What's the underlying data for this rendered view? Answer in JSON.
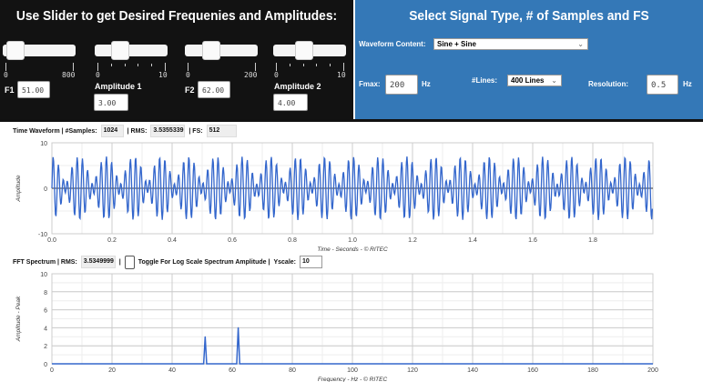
{
  "left_panel": {
    "title": "Use Slider to get Desired Frequenies and Amplitudes:",
    "sliders": [
      {
        "name": "F1",
        "label": "F1",
        "min": "0",
        "max": "800",
        "value": "51.00"
      },
      {
        "name": "Amplitude 1",
        "label": "Amplitude 1",
        "min": "0",
        "max": "10",
        "value": "3.00"
      },
      {
        "name": "F2",
        "label": "F2",
        "min": "0",
        "max": "200",
        "value": "62.00"
      },
      {
        "name": "Amplitude 2",
        "label": "Amplitude 2",
        "min": "0",
        "max": "10",
        "value": "4.00"
      }
    ]
  },
  "right_panel": {
    "title": "Select Signal Type, # of Samples and FS",
    "waveform_label": "Waveform Content:",
    "waveform_value": "Sine + Sine",
    "fmax_label": "Fmax:",
    "fmax_value": "200",
    "fmax_unit": "Hz",
    "lines_label": "#Lines:",
    "lines_value": "400 Lines",
    "resolution_label": "Resolution:",
    "resolution_value": "0.5",
    "resolution_unit": "Hz"
  },
  "time_bar": {
    "prefix": "Time Waveform | #Samples:",
    "samples": "1024",
    "rms_label": "| RMS:",
    "rms": "3.5355339",
    "fs_label": "| FS:",
    "fs": "512"
  },
  "fft_bar": {
    "prefix": "FFT Spectrum | RMS:",
    "rms": "3.5349999",
    "sep": "|",
    "toggle_label": "Toggle For Log Scale Spectrum Amplitude |",
    "yscale_label": "Yscale:",
    "yscale": "10"
  },
  "colors": {
    "line": "#3366cc",
    "left_bg": "#121212",
    "right_bg": "#3478b7"
  },
  "chart_data": [
    {
      "type": "line",
      "xlabel": "Time - Seconds - © RITEC",
      "ylabel": "Amplitude",
      "xlim": [
        0,
        2
      ],
      "ylim": [
        -10,
        10
      ],
      "xticks": [
        "0.0",
        "0.2",
        "0.4",
        "0.6",
        "0.8",
        "1.0",
        "1.2",
        "1.4",
        "1.6",
        "1.8"
      ],
      "yticks": [
        "10",
        "0",
        "-10"
      ],
      "grid": true,
      "signal": {
        "components": [
          {
            "freq_hz": 51,
            "amplitude": 3
          },
          {
            "freq_hz": 62,
            "amplitude": 4
          }
        ],
        "samples": 1024,
        "fs": 512
      }
    },
    {
      "type": "line",
      "xlabel": "Frequency - Hz - © RITEC",
      "ylabel": "Amplitude - Peak",
      "xlim": [
        0,
        200
      ],
      "ylim": [
        0,
        10
      ],
      "xticks": [
        "0",
        "20",
        "40",
        "60",
        "80",
        "100",
        "120",
        "140",
        "160",
        "180",
        "200"
      ],
      "yticks": [
        "10",
        "8",
        "6",
        "4",
        "2",
        "0"
      ],
      "grid": true,
      "peaks": [
        {
          "x": 51,
          "y": 3
        },
        {
          "x": 62,
          "y": 4
        }
      ],
      "resolution_hz": 0.5
    }
  ]
}
